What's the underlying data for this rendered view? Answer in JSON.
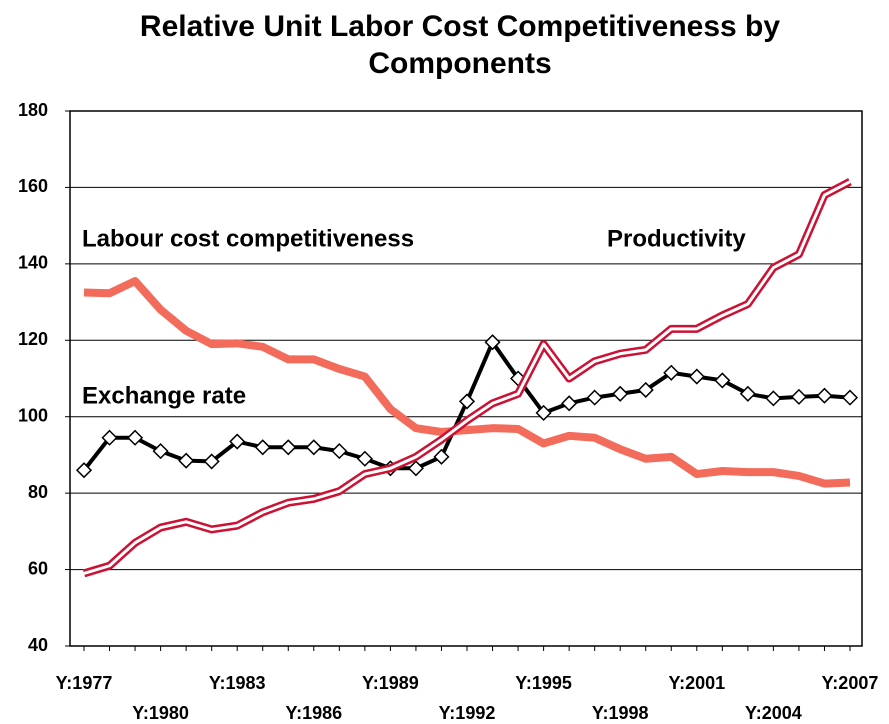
{
  "chart_data": {
    "type": "line",
    "title": "Relative Unit Labor Cost Competitiveness by Components",
    "categories": [
      "Y:1977",
      null,
      null,
      "Y:1980",
      null,
      null,
      "Y:1983",
      null,
      null,
      "Y:1986",
      null,
      null,
      "Y:1989",
      null,
      null,
      "Y:1992",
      null,
      null,
      "Y:1995",
      null,
      null,
      "Y:1998",
      null,
      null,
      "Y:2001",
      null,
      null,
      "Y:2004",
      null,
      null,
      "Y:2007"
    ],
    "series": [
      {
        "name": "Labour cost competitiveness",
        "color": "#f26b5b",
        "values": [
          132.5,
          132.3,
          135.5,
          128,
          122.5,
          119,
          119.2,
          118.3,
          115,
          115,
          112.5,
          110.5,
          102,
          97,
          96,
          96.5,
          97,
          96.8,
          93,
          95,
          94.5,
          91.5,
          89,
          89.5,
          85,
          85.8,
          85.5,
          85.5,
          84.5,
          82.5,
          82.8
        ]
      },
      {
        "name": "Exchange rate",
        "color": "#000000",
        "marker": "diamond",
        "values": [
          86,
          94.5,
          94.5,
          91,
          88.5,
          88.3,
          93.5,
          92,
          92,
          92,
          91,
          89,
          86.5,
          86.5,
          89.5,
          104,
          119.5,
          110,
          101,
          103.5,
          105,
          106,
          107,
          111.5,
          110.5,
          109.5,
          106,
          104.8,
          105.2,
          105.5,
          105
        ]
      },
      {
        "name": "Productivity",
        "color": "#cc1133",
        "style": "double",
        "values": [
          59,
          61,
          67,
          71,
          72.5,
          70.5,
          71.5,
          75,
          77.5,
          78.5,
          80.5,
          85,
          86.5,
          89.5,
          94,
          99,
          103.5,
          106,
          119,
          110,
          114.5,
          116.5,
          117.5,
          123,
          123,
          126.5,
          129.5,
          139,
          142.5,
          158,
          161.5
        ]
      }
    ],
    "ylim": [
      40,
      180
    ],
    "yticks": [
      40,
      60,
      80,
      100,
      120,
      140,
      160,
      180
    ],
    "grid": true
  }
}
